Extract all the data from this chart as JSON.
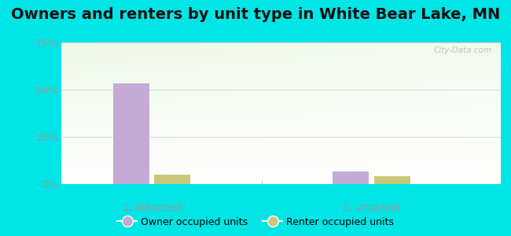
{
  "title": "Owners and renters by unit type in White Bear Lake, MN",
  "categories": [
    "1, detached",
    "1, attached"
  ],
  "owner_values": [
    0.535,
    0.065
  ],
  "renter_values": [
    0.048,
    0.043
  ],
  "owner_color": "#c5aad5",
  "renter_color": "#c8c878",
  "ylim": [
    0,
    0.75
  ],
  "yticks": [
    0.0,
    0.25,
    0.5,
    0.75
  ],
  "ytick_labels": [
    "0%",
    "25%",
    "50%",
    "75%"
  ],
  "bar_width": 0.28,
  "background_color": "#00e5e5",
  "title_fontsize": 14,
  "watermark": "City-Data.com",
  "tick_color": "#999999",
  "grid_color": "#dddddd",
  "plot_bg_colors": [
    "#e8f5e0",
    "#ffffff"
  ],
  "x_positions": [
    1.0,
    2.7
  ]
}
